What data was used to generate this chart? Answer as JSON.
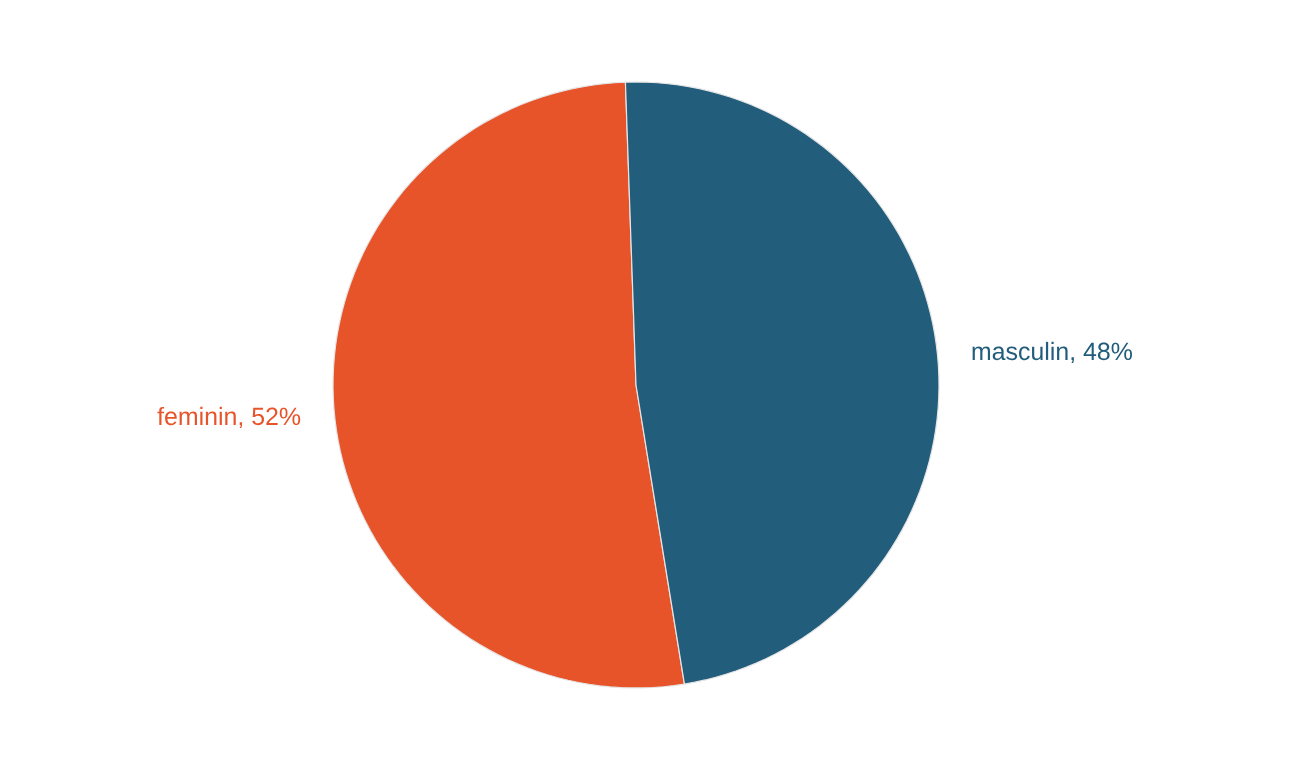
{
  "chart_data": {
    "type": "pie",
    "categories": [
      "feminin",
      "masculin"
    ],
    "values": [
      52,
      48
    ],
    "colors": [
      "#e8542a",
      "#235d7c"
    ],
    "value_labels": [
      ", 52%",
      ", 48%"
    ]
  }
}
